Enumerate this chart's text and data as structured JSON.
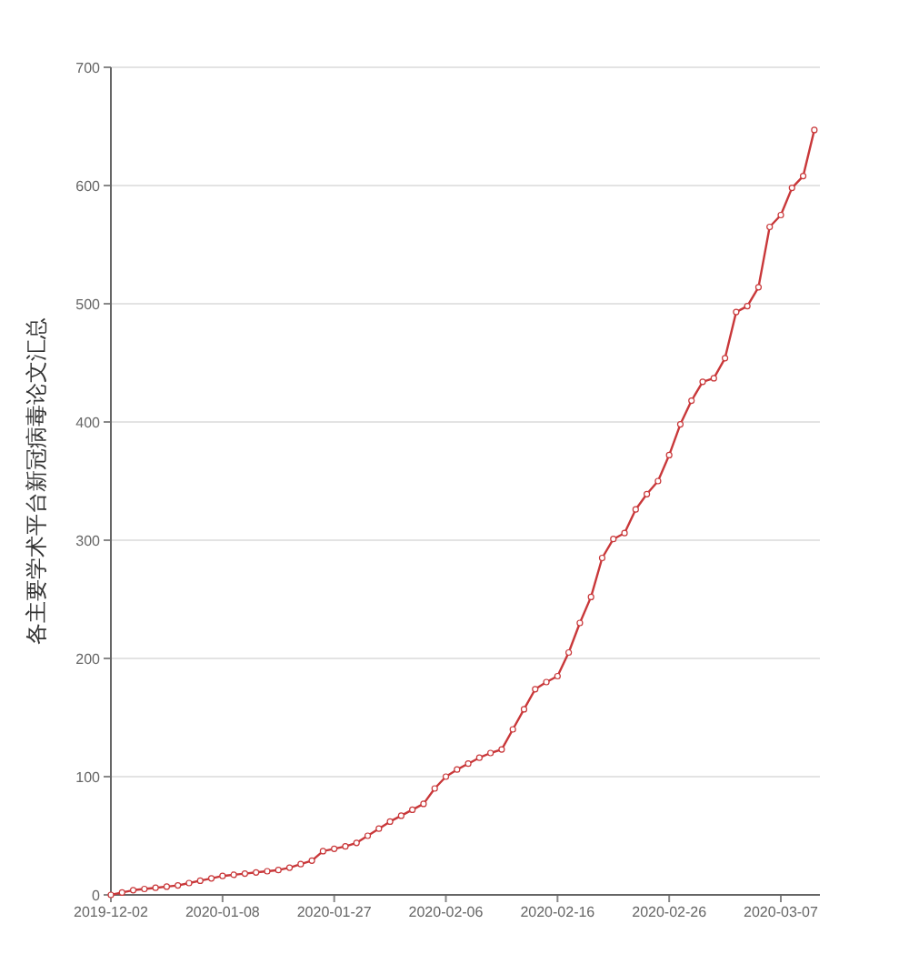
{
  "chart_data": {
    "type": "line",
    "ylabel": "各主要学术平台新冠病毒论文汇总",
    "categories": [
      "2019-12-02",
      null,
      null,
      null,
      null,
      null,
      null,
      null,
      null,
      null,
      "2020-01-08",
      null,
      null,
      null,
      null,
      null,
      null,
      null,
      null,
      null,
      "2020-01-27",
      null,
      null,
      null,
      null,
      null,
      null,
      null,
      null,
      null,
      "2020-02-06",
      null,
      null,
      null,
      null,
      null,
      null,
      null,
      null,
      null,
      "2020-02-16",
      null,
      null,
      null,
      null,
      null,
      null,
      null,
      null,
      null,
      "2020-02-26",
      null,
      null,
      null,
      null,
      null,
      null,
      null,
      null,
      null,
      "2020-03-07",
      null,
      null,
      null
    ],
    "series": [
      {
        "color": "#c9383a",
        "values": [
          0,
          2,
          4,
          5,
          6,
          7,
          8,
          10,
          12,
          14,
          16,
          17,
          18,
          19,
          20,
          21,
          23,
          26,
          29,
          37,
          39,
          41,
          44,
          50,
          56,
          62,
          67,
          72,
          77,
          90,
          100,
          106,
          111,
          116,
          120,
          123,
          140,
          157,
          174,
          180,
          185,
          205,
          230,
          252,
          285,
          301,
          306,
          326,
          339,
          350,
          372,
          398,
          418,
          434,
          437,
          454,
          493,
          498,
          514,
          565,
          575,
          598,
          608,
          647
        ]
      }
    ],
    "ylim": [
      0,
      700
    ],
    "yticks": [
      0,
      100,
      200,
      300,
      400,
      500,
      600,
      700
    ],
    "grid": "y",
    "marker": "circle",
    "line_style": "solid"
  }
}
